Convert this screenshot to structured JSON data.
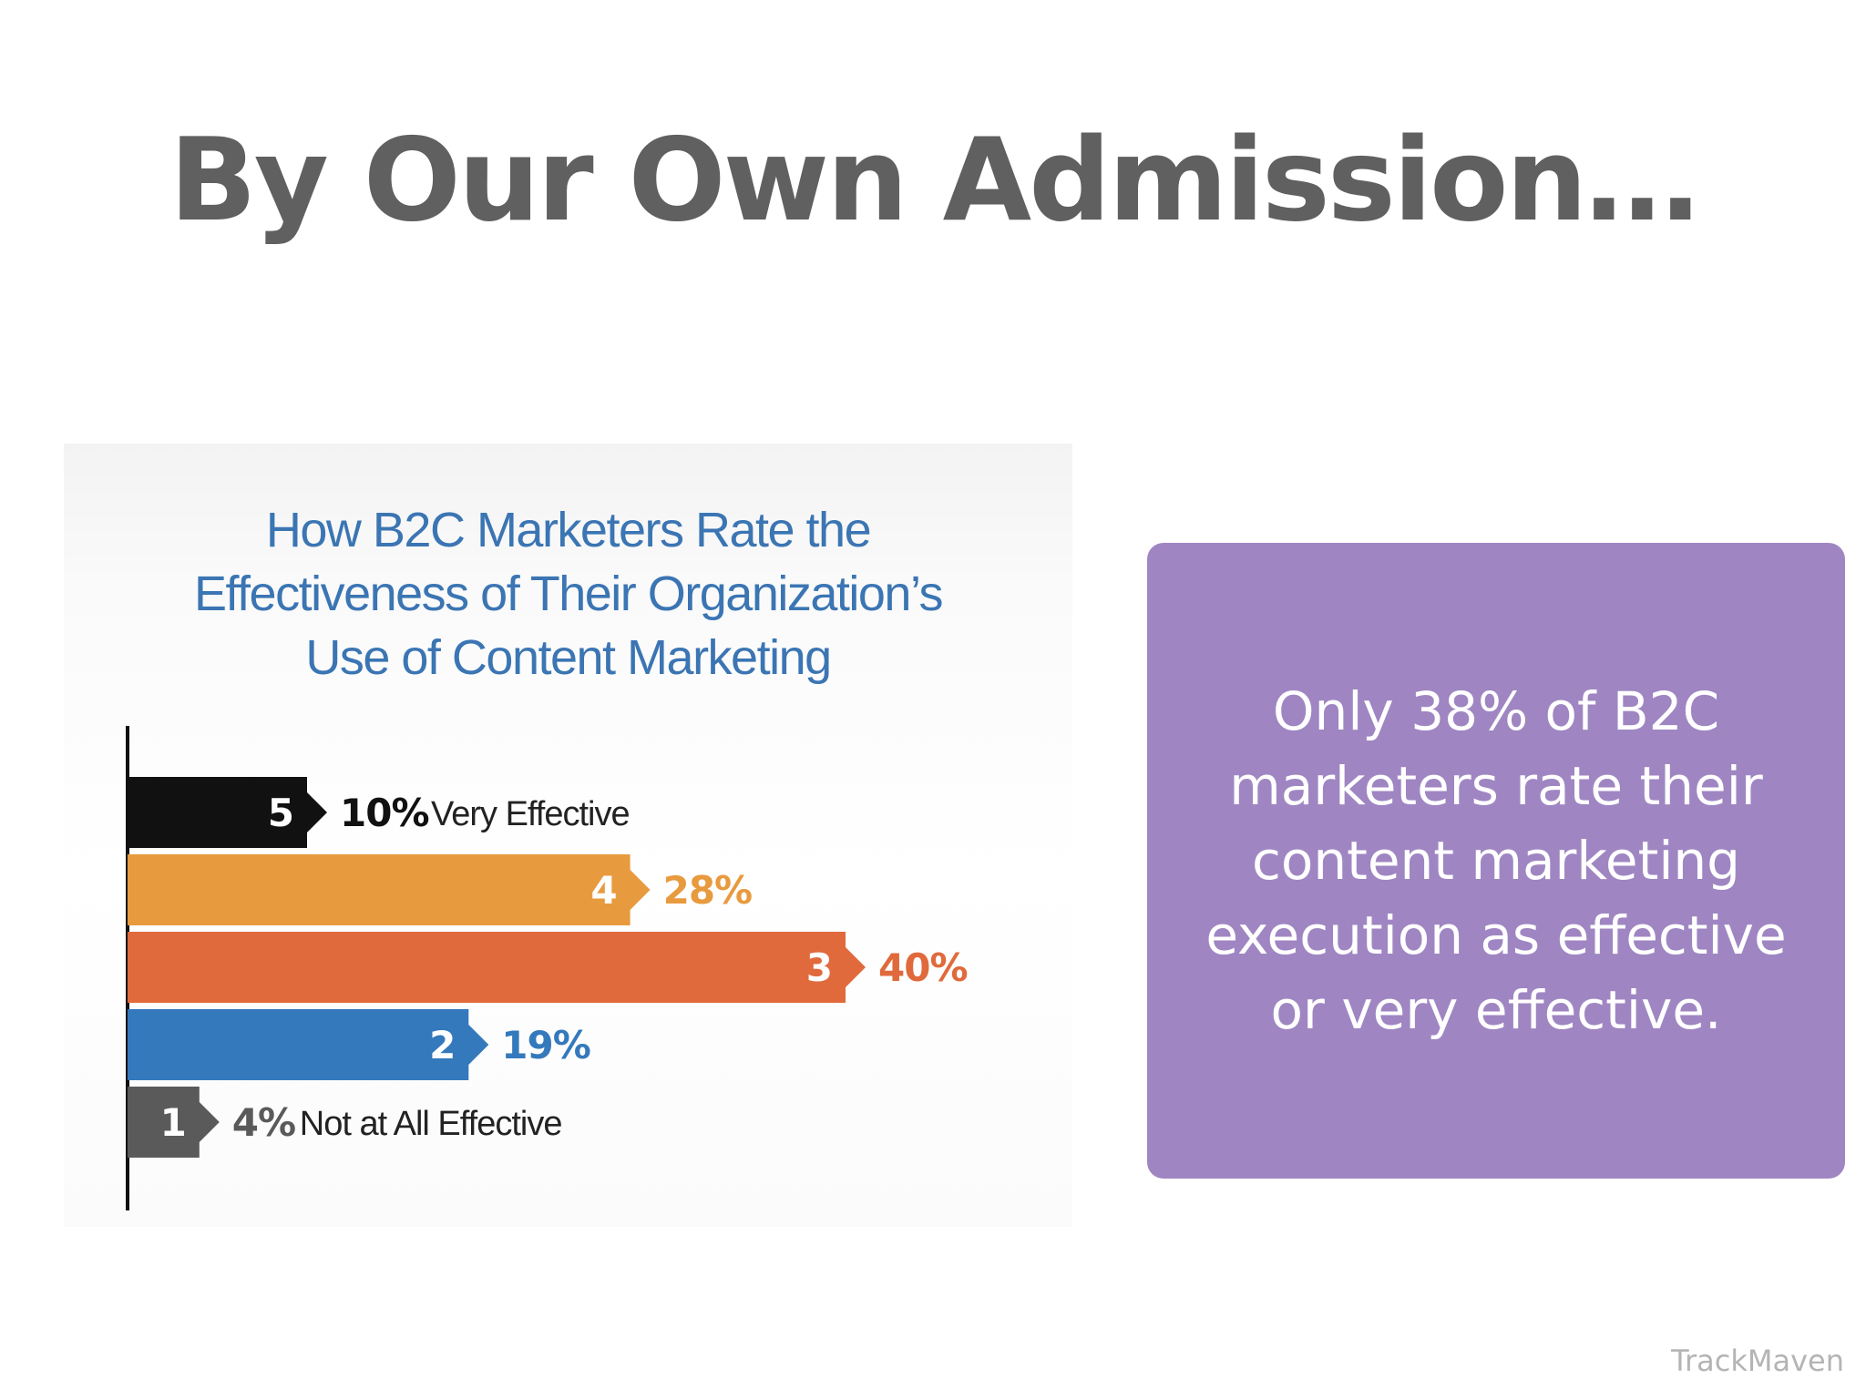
{
  "slide": {
    "title": "By Our Own Admission…",
    "callout": "Only 38% of B2C marketers rate their content marketing execution as effective or very effective.",
    "brand": "TrackMaven"
  },
  "chart_data": {
    "type": "bar",
    "orientation": "horizontal",
    "title": [
      "How B2C Marketers Rate the",
      "Effectiveness of Their Organization’s",
      "Use of Content Marketing"
    ],
    "categories": [
      "5",
      "4",
      "3",
      "2",
      "1"
    ],
    "values": [
      10,
      28,
      40,
      19,
      4
    ],
    "value_labels": [
      "10%",
      "28%",
      "40%",
      "19%",
      "4%"
    ],
    "descriptors": [
      "Very Effective",
      "",
      "",
      "",
      "Not at All Effective"
    ],
    "colors": [
      "#111111",
      "#e89a3e",
      "#e06a3c",
      "#3479bc",
      "#5a5a5a"
    ],
    "label_colors": [
      "#111111",
      "#e89a3e",
      "#e06a3c",
      "#3479bc",
      "#5a5a5a"
    ],
    "xlim": [
      0,
      40
    ],
    "grid": false
  }
}
